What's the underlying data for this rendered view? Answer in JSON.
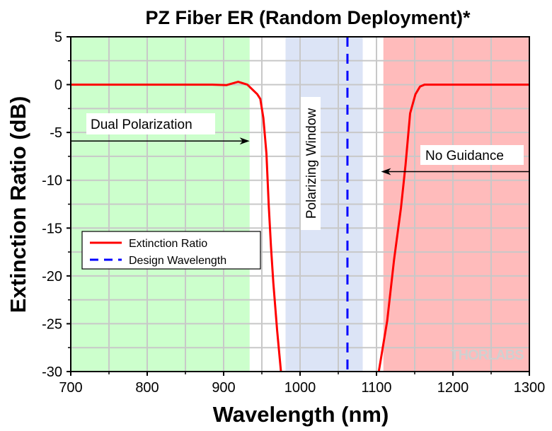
{
  "chart_data": {
    "type": "line",
    "title": "PZ Fiber ER (Random Deployment)*",
    "xlabel": "Wavelength (nm)",
    "ylabel": "Extinction Ratio (dB)",
    "xlim": [
      700,
      1300
    ],
    "ylim": [
      -30,
      5
    ],
    "xticks": [
      700,
      800,
      900,
      1000,
      1100,
      1200,
      1300
    ],
    "yticks": [
      5,
      0,
      -5,
      -10,
      -15,
      -20,
      -25,
      -30
    ],
    "grid": true,
    "legend_position": "center-left",
    "series": [
      {
        "name": "Extinction Ratio",
        "color": "#ff0000",
        "style": "solid",
        "segments": [
          {
            "x": [
              700,
              885,
              904,
              919,
              931,
              944,
              948,
              952,
              956,
              959,
              962,
              965,
              970,
              975
            ],
            "y": [
              0,
              0,
              -0.05,
              0.3,
              0,
              -1,
              -1.5,
              -3.5,
              -7.2,
              -12.6,
              -17,
              -20.7,
              -25.7,
              -30
            ]
          },
          {
            "x": [
              1103,
              1114,
              1123,
              1132,
              1138,
              1144,
              1151,
              1157,
              1163,
              1300
            ],
            "y": [
              -30,
              -24.7,
              -18.3,
              -12.9,
              -8.4,
              -3,
              -1,
              -0.2,
              0,
              0
            ]
          }
        ]
      },
      {
        "name": "Design Wavelength",
        "color": "#0000ff",
        "style": "dashed",
        "x": 1062
      }
    ],
    "regions": [
      {
        "name": "Dual Polarization",
        "from": 700,
        "to": 934,
        "color": "#ccffcc"
      },
      {
        "name": "Polarizing Window",
        "from": 981,
        "to": 1082,
        "color": "#dce4f6"
      },
      {
        "name": "No Guidance",
        "from": 1109,
        "to": 1300,
        "color": "#ffbbbb"
      }
    ],
    "annotations": [
      {
        "text": "Dual Polarization",
        "arrow_from": 700,
        "arrow_to": 934,
        "arrow_y": -5.9
      },
      {
        "text": "Polarizing Window"
      },
      {
        "text": "No Guidance",
        "arrow_from": 1300,
        "arrow_to": 1106,
        "arrow_y": -9.1
      }
    ],
    "watermark": "THORLABS"
  }
}
